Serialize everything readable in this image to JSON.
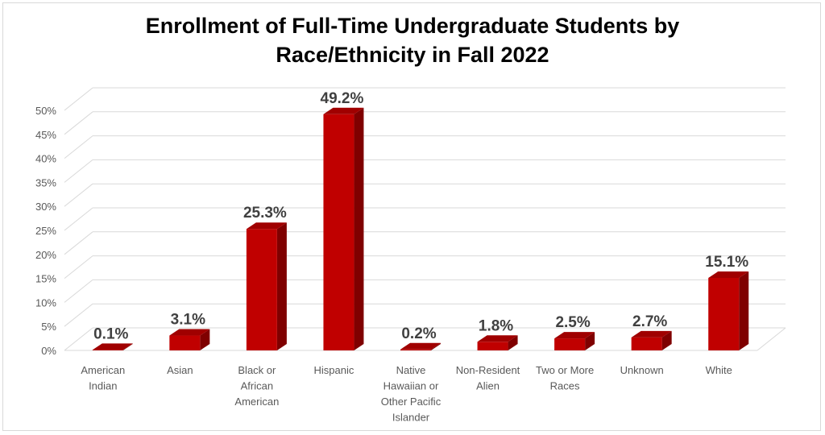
{
  "chart_data": {
    "type": "bar",
    "title_lines": [
      "Enrollment of Full-Time Undergraduate Students by",
      "Race/Ethnicity in Fall 2022"
    ],
    "categories": [
      [
        "American",
        "Indian"
      ],
      [
        "Asian"
      ],
      [
        "Black or",
        "African",
        "American"
      ],
      [
        "Hispanic"
      ],
      [
        "Native",
        "Hawaiian or",
        "Other Pacific",
        "Islander"
      ],
      [
        "Non-Resident",
        "Alien"
      ],
      [
        "Two or More",
        "Races"
      ],
      [
        "Unknown"
      ],
      [
        "White"
      ]
    ],
    "values": [
      0.1,
      3.1,
      25.3,
      49.2,
      0.2,
      1.8,
      2.5,
      2.7,
      15.1
    ],
    "data_labels": [
      "0.1%",
      "3.1%",
      "25.3%",
      "49.2%",
      "0.2%",
      "1.8%",
      "2.5%",
      "2.7%",
      "15.1%"
    ],
    "y_ticks": [
      "0%",
      "5%",
      "10%",
      "15%",
      "20%",
      "25%",
      "30%",
      "35%",
      "40%",
      "45%",
      "50%"
    ],
    "ylim": [
      0,
      50
    ],
    "grid": true,
    "legend": "none",
    "colors": {
      "bar_front": "#c00000",
      "bar_side": "#7f0000",
      "bar_top": "#a00000",
      "grid": "#d9d9d9",
      "text": "#595959"
    }
  }
}
